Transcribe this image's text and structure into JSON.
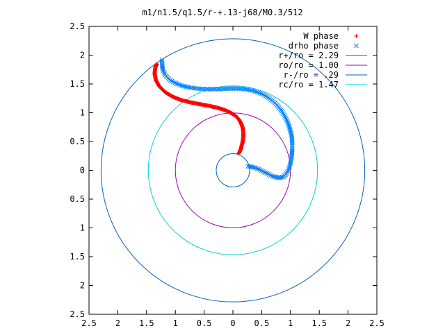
{
  "chart_data": {
    "type": "scatter",
    "title": "m1/n1.5/q1.5/r-+.13-j68/M0.3/512",
    "xlim": [
      -2.5,
      2.5
    ],
    "ylim": [
      -2.5,
      2.5
    ],
    "x_ticks": [
      -2.5,
      -2,
      -1.5,
      -1,
      -0.5,
      0,
      0.5,
      1,
      1.5,
      2,
      2.5
    ],
    "y_ticks": [
      -2.5,
      -2,
      -1.5,
      -1,
      -0.5,
      0,
      0.5,
      1,
      1.5,
      2,
      2.5
    ],
    "tick_labels": [
      "2.5",
      "2",
      "1.5",
      "1",
      "0.5",
      "0",
      "0.5",
      "1",
      "1.5",
      "2",
      "2.5"
    ],
    "grid": false,
    "legend_position": "top-right",
    "series": [
      {
        "name": "W phase",
        "kind": "points",
        "marker": "+",
        "color": "#ff0000",
        "points": [
          [
            0.1,
            0.29
          ],
          [
            0.13,
            0.35
          ],
          [
            0.15,
            0.42
          ],
          [
            0.17,
            0.5
          ],
          [
            0.18,
            0.58
          ],
          [
            0.18,
            0.66
          ],
          [
            0.17,
            0.74
          ],
          [
            0.14,
            0.82
          ],
          [
            0.1,
            0.89
          ],
          [
            0.04,
            0.95
          ],
          [
            -0.04,
            1.0
          ],
          [
            -0.15,
            1.05
          ],
          [
            -0.28,
            1.09
          ],
          [
            -0.42,
            1.12
          ],
          [
            -0.58,
            1.15
          ],
          [
            -0.74,
            1.18
          ],
          [
            -0.9,
            1.22
          ],
          [
            -1.05,
            1.28
          ],
          [
            -1.18,
            1.36
          ],
          [
            -1.28,
            1.46
          ],
          [
            -1.34,
            1.57
          ],
          [
            -1.36,
            1.68
          ],
          [
            -1.35,
            1.78
          ],
          [
            -1.32,
            1.85
          ]
        ]
      },
      {
        "name": "drho phase",
        "kind": "points",
        "marker": "x",
        "color": "#0080ff",
        "points": [
          [
            0.26,
            0.07
          ],
          [
            0.33,
            0.06
          ],
          [
            0.4,
            0.04
          ],
          [
            0.47,
            0.01
          ],
          [
            0.54,
            -0.03
          ],
          [
            0.61,
            -0.06
          ],
          [
            0.68,
            -0.1
          ],
          [
            0.75,
            -0.12
          ],
          [
            0.82,
            -0.13
          ],
          [
            0.88,
            -0.11
          ],
          [
            0.93,
            -0.06
          ],
          [
            0.97,
            0.02
          ],
          [
            1.0,
            0.12
          ],
          [
            1.02,
            0.24
          ],
          [
            1.03,
            0.36
          ],
          [
            1.03,
            0.48
          ],
          [
            1.02,
            0.6
          ],
          [
            0.99,
            0.72
          ],
          [
            0.95,
            0.84
          ],
          [
            0.89,
            0.96
          ],
          [
            0.82,
            1.07
          ],
          [
            0.73,
            1.17
          ],
          [
            0.62,
            1.26
          ],
          [
            0.5,
            1.33
          ],
          [
            0.36,
            1.38
          ],
          [
            0.22,
            1.41
          ],
          [
            0.08,
            1.42
          ],
          [
            -0.06,
            1.42
          ],
          [
            -0.2,
            1.41
          ],
          [
            -0.34,
            1.41
          ],
          [
            -0.48,
            1.41
          ],
          [
            -0.62,
            1.42
          ],
          [
            -0.76,
            1.44
          ],
          [
            -0.89,
            1.47
          ],
          [
            -1.01,
            1.52
          ],
          [
            -1.11,
            1.58
          ],
          [
            -1.18,
            1.66
          ],
          [
            -1.22,
            1.75
          ],
          [
            -1.23,
            1.84
          ],
          [
            -1.23,
            1.92
          ]
        ]
      },
      {
        "name": "r+/ro = 2.29",
        "kind": "circle",
        "radius": 2.29,
        "color": "#0060c0"
      },
      {
        "name": "ro/ro = 1.00",
        "kind": "circle",
        "radius": 1.0,
        "color": "#a000c0"
      },
      {
        "name": "r-/ro = .29",
        "kind": "circle",
        "radius": 0.29,
        "color": "#0060c0"
      },
      {
        "name": "rc/ro = 1.47",
        "kind": "circle",
        "radius": 1.47,
        "color": "#00d0d0"
      }
    ]
  }
}
